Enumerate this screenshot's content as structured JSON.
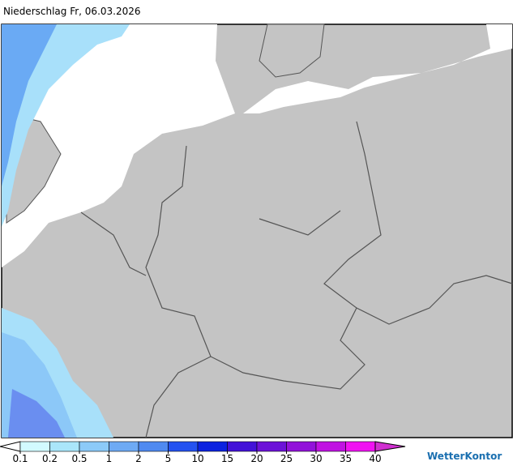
{
  "title": "Niederschlag Fr, 06.03.2026",
  "legend": {
    "labels": [
      "0.1",
      "0.2",
      "0.5",
      "1",
      "2",
      "5",
      "10",
      "15",
      "20",
      "25",
      "30",
      "35",
      "40"
    ],
    "colors": [
      "#d2faff",
      "#aae6fa",
      "#8ccaf8",
      "#6eaaf4",
      "#508af0",
      "#2452f0",
      "#0c22e0",
      "#4212d8",
      "#6c12d8",
      "#9212da",
      "#c012e2",
      "#f012f2"
    ],
    "below_color": "#ffffff",
    "above_color": "#d030d0"
  },
  "brand": "WetterKontor"
}
